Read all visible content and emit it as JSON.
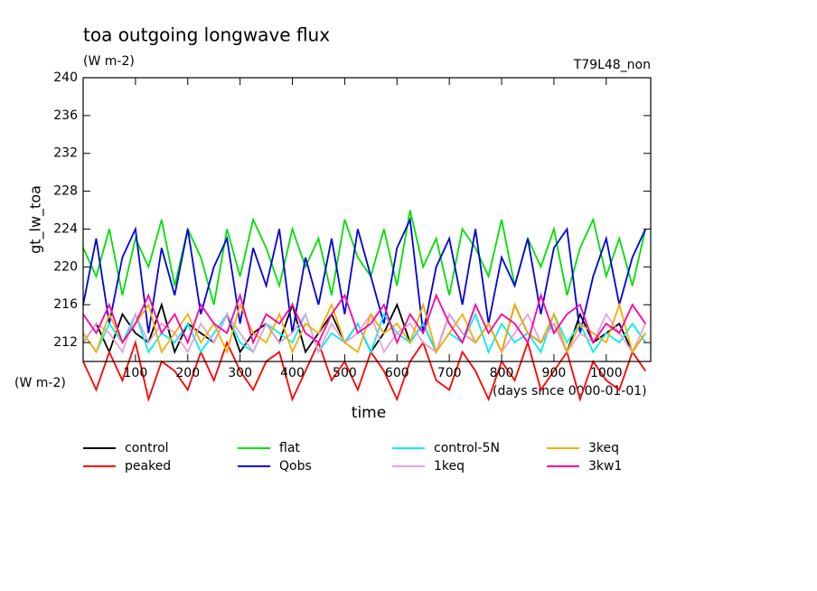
{
  "chart_data": {
    "type": "line",
    "title": "toa outgoing longwave flux",
    "subtitle": "(W m-2)",
    "annotation": "T79L48_non",
    "ylabel": "gt_lw_toa",
    "yunit": "(W m-2)",
    "xlabel": "time",
    "xunit": "(days since 0000-01-01)",
    "xlim": [
      0,
      1085
    ],
    "ylim": [
      210,
      240
    ],
    "xticks": [
      100,
      200,
      300,
      400,
      500,
      600,
      700,
      800,
      900,
      1000
    ],
    "yticks": [
      212,
      216,
      220,
      224,
      228,
      232,
      236,
      240
    ],
    "x": [
      0,
      25,
      50,
      75,
      100,
      125,
      150,
      175,
      200,
      225,
      250,
      275,
      300,
      325,
      350,
      375,
      400,
      425,
      450,
      475,
      500,
      525,
      550,
      575,
      600,
      625,
      650,
      675,
      700,
      725,
      750,
      775,
      800,
      825,
      850,
      875,
      900,
      925,
      950,
      975,
      1000,
      1025,
      1050,
      1075
    ],
    "series": [
      {
        "name": "control",
        "color": "#000000",
        "values": [
          212,
          214,
          211,
          215,
          213,
          212,
          216,
          211,
          214,
          213,
          212,
          215,
          211,
          213,
          214,
          212,
          216,
          211,
          213,
          215,
          212,
          214,
          211,
          213,
          216,
          212,
          214,
          211,
          215,
          213,
          212,
          214,
          211,
          216,
          213,
          212,
          214,
          211,
          215,
          212,
          213,
          214,
          211,
          213
        ]
      },
      {
        "name": "peaked",
        "color": "#ff0000",
        "values": [
          210,
          207,
          211,
          208,
          212,
          206,
          210,
          209,
          207,
          211,
          208,
          212,
          209,
          207,
          210,
          211,
          206,
          209,
          212,
          208,
          210,
          207,
          211,
          209,
          206,
          210,
          212,
          208,
          207,
          211,
          209,
          206,
          210,
          208,
          212,
          207,
          209,
          211,
          206,
          210,
          208,
          207,
          211,
          209
        ]
      },
      {
        "name": "flat",
        "color": "#00e000",
        "values": [
          222,
          219,
          224,
          217,
          223,
          220,
          225,
          218,
          224,
          221,
          216,
          224,
          219,
          225,
          222,
          218,
          224,
          220,
          223,
          217,
          225,
          221,
          219,
          224,
          218,
          226,
          220,
          223,
          217,
          224,
          222,
          219,
          225,
          218,
          223,
          220,
          224,
          217,
          222,
          225,
          219,
          223,
          218,
          224
        ]
      },
      {
        "name": "Qobs",
        "color": "#0000e0",
        "values": [
          216,
          223,
          214,
          221,
          224,
          213,
          222,
          217,
          224,
          215,
          220,
          223,
          214,
          222,
          218,
          224,
          213,
          221,
          216,
          223,
          215,
          224,
          219,
          214,
          222,
          225,
          213,
          220,
          223,
          216,
          224,
          214,
          221,
          218,
          223,
          215,
          222,
          224,
          213,
          219,
          223,
          216,
          221,
          224
        ]
      },
      {
        "name": "control-5N",
        "color": "#00f0f0",
        "values": [
          213,
          211,
          214,
          212,
          215,
          211,
          213,
          212,
          214,
          211,
          213,
          215,
          212,
          211,
          214,
          213,
          212,
          215,
          211,
          213,
          212,
          214,
          211,
          215,
          213,
          212,
          214,
          211,
          213,
          212,
          215,
          211,
          214,
          212,
          213,
          211,
          215,
          212,
          214,
          211,
          213,
          212,
          214,
          212
        ]
      },
      {
        "name": "1keq",
        "color": "#e8a0d8",
        "values": [
          212,
          214,
          213,
          211,
          215,
          212,
          214,
          213,
          211,
          214,
          212,
          215,
          213,
          211,
          214,
          212,
          213,
          215,
          211,
          214,
          212,
          213,
          215,
          211,
          213,
          214,
          212,
          211,
          215,
          213,
          212,
          214,
          211,
          213,
          215,
          212,
          214,
          211,
          213,
          212,
          215,
          213,
          211,
          214
        ]
      },
      {
        "name": "3keq",
        "color": "#f0b000",
        "values": [
          213,
          211,
          215,
          212,
          214,
          216,
          211,
          213,
          215,
          212,
          214,
          211,
          216,
          213,
          212,
          215,
          211,
          214,
          213,
          216,
          212,
          211,
          215,
          213,
          214,
          212,
          216,
          211,
          213,
          215,
          212,
          214,
          211,
          216,
          213,
          212,
          215,
          211,
          214,
          213,
          212,
          216,
          211,
          213
        ]
      },
      {
        "name": "3kw1",
        "color": "#ff00a0",
        "values": [
          215,
          213,
          216,
          212,
          214,
          217,
          213,
          215,
          212,
          216,
          214,
          213,
          217,
          212,
          215,
          214,
          216,
          213,
          212,
          215,
          217,
          213,
          214,
          216,
          212,
          215,
          213,
          217,
          214,
          212,
          216,
          213,
          215,
          214,
          212,
          217,
          213,
          215,
          216,
          212,
          214,
          213,
          216,
          214
        ]
      }
    ]
  }
}
